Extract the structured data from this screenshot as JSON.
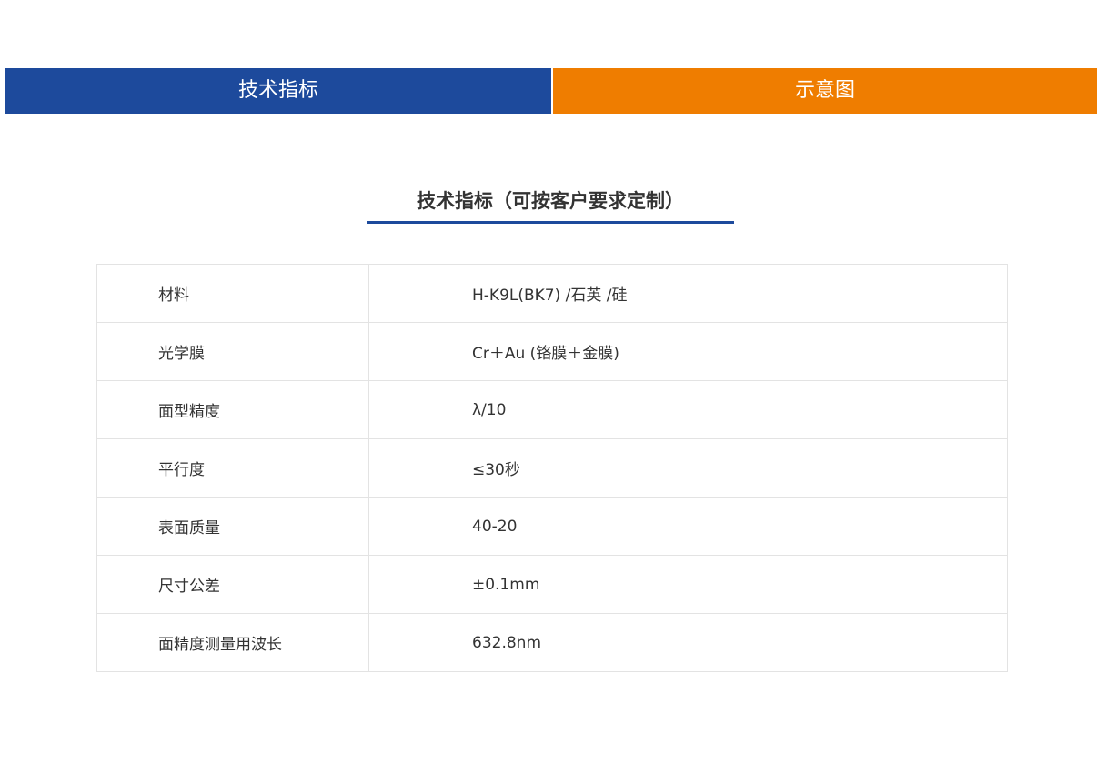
{
  "tabs": [
    {
      "label": "技术指标",
      "color": "#1d4a9c",
      "active": true
    },
    {
      "label": "示意图",
      "color": "#ef7d00",
      "active": false
    }
  ],
  "section_title": "技术指标（可按客户要求定制）",
  "specs": [
    {
      "label": "材料",
      "value": "H-K9L(BK7) /石英 /硅"
    },
    {
      "label": "光学膜",
      "value": "Cr＋Au (铬膜＋金膜)"
    },
    {
      "label": "面型精度",
      "value": "λ/10"
    },
    {
      "label": "平行度",
      "value": "≤30秒"
    },
    {
      "label": "表面质量",
      "value": "40-20"
    },
    {
      "label": "尺寸公差",
      "value": "±0.1mm"
    },
    {
      "label": "面精度测量用波长",
      "value": "632.8nm"
    }
  ]
}
